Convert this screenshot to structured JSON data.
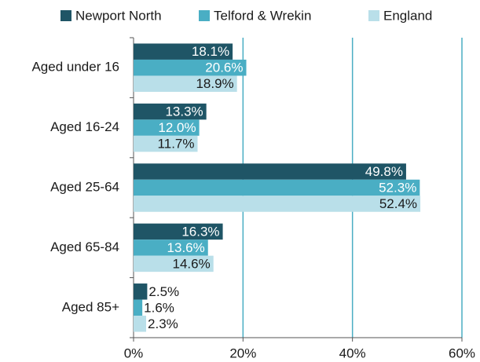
{
  "chart_data": {
    "type": "hbar",
    "categories": [
      "Aged under 16",
      "Aged 16-24",
      "Aged 25-64",
      "Aged 65-84",
      "Aged 85+"
    ],
    "series": [
      {
        "name": "Newport North",
        "color": "#1f5566",
        "values": [
          18.1,
          13.3,
          49.8,
          16.3,
          2.5
        ],
        "value_labels": [
          "18.1%",
          "13.3%",
          "49.8%",
          "16.3%",
          "2.5%"
        ]
      },
      {
        "name": "Telford & Wrekin",
        "color": "#4aaec4",
        "values": [
          20.6,
          12.0,
          52.3,
          13.6,
          1.6
        ],
        "value_labels": [
          "20.6%",
          "12.0%",
          "52.3%",
          "13.6%",
          "1.6%"
        ]
      },
      {
        "name": "England",
        "color": "#b9dfe9",
        "values": [
          18.9,
          11.7,
          52.4,
          14.6,
          2.3
        ],
        "value_labels": [
          "18.9%",
          "11.7%",
          "52.4%",
          "14.6%",
          "2.3%"
        ]
      }
    ],
    "xlim": [
      0,
      60
    ],
    "xticks": [
      {
        "value": 0,
        "label": "0%"
      },
      {
        "value": 20,
        "label": "20%"
      },
      {
        "value": 40,
        "label": "40%"
      },
      {
        "value": 60,
        "label": "60%"
      }
    ],
    "grid": true,
    "legend": "top"
  }
}
